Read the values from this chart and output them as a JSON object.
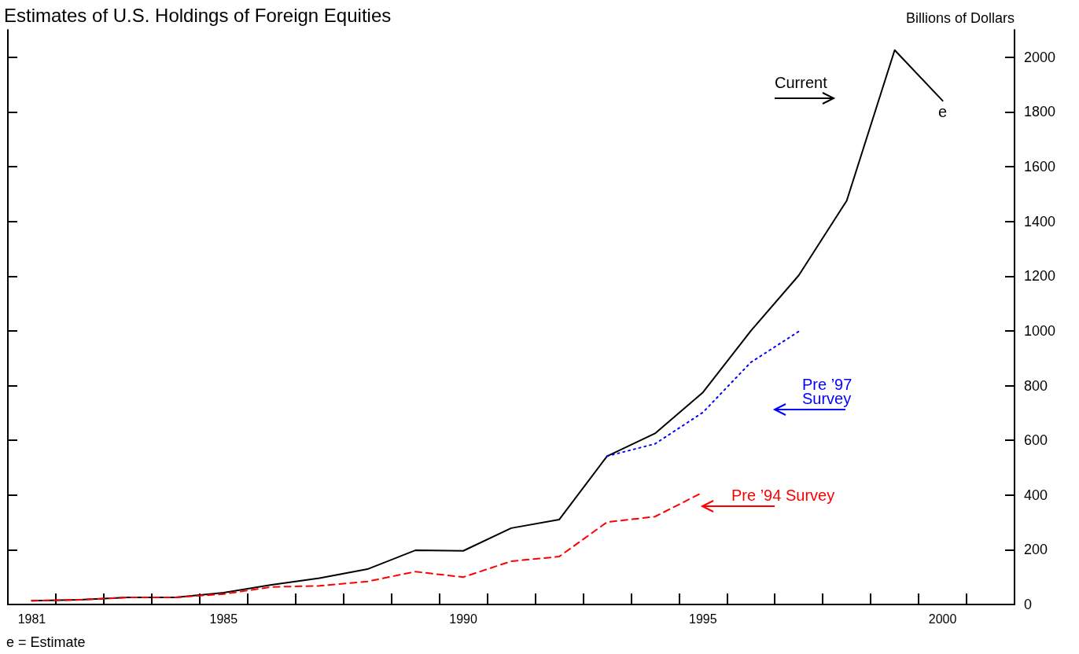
{
  "chart_data": {
    "type": "line",
    "title": "Estimates of U.S. Holdings of Foreign Equities",
    "ylabel": "Billions of Dollars",
    "x": [
      1981,
      1982,
      1983,
      1984,
      1985,
      1986,
      1987,
      1988,
      1989,
      1990,
      1991,
      1992,
      1993,
      1994,
      1995,
      1996,
      1997,
      1998,
      1999,
      2000
    ],
    "series": [
      {
        "name": "Current",
        "color": "#000000",
        "line_style": "solid",
        "values": [
          14,
          17,
          26,
          26,
          43,
          72,
          96,
          129,
          198,
          196,
          279,
          310,
          542,
          625,
          775,
          1000,
          1203,
          1476,
          2026,
          1841
        ]
      },
      {
        "name": "Pre ’97\nSurvey",
        "color": "#0000ff",
        "line_style": "dotted",
        "x": [
          1993,
          1994,
          1995,
          1996,
          1997
        ],
        "values": [
          542,
          587,
          702,
          885,
          998
        ]
      },
      {
        "name": "Pre ’94 Survey",
        "color": "#ff0000",
        "line_style": "dashed",
        "x": [
          1981,
          1982,
          1983,
          1984,
          1985,
          1986,
          1987,
          1988,
          1989,
          1990,
          1991,
          1992,
          1993,
          1994,
          1995
        ],
        "values": [
          14,
          17,
          26,
          26,
          38,
          64,
          68,
          84,
          120,
          100,
          158,
          175,
          301,
          321,
          410
        ]
      }
    ],
    "xlim": [
      1980.5,
      2001.5
    ],
    "xticks": [
      1981,
      {
        "value": 1981.5,
        "label": null
      },
      {
        "value": 1982.5,
        "label": null
      },
      {
        "value": 1983.5,
        "label": null
      },
      {
        "value": 1984.5,
        "label": null
      },
      1985,
      {
        "value": 1985.5,
        "label": null
      },
      {
        "value": 1986.5,
        "label": null
      },
      {
        "value": 1987.5,
        "label": null
      },
      {
        "value": 1988.5,
        "label": null
      },
      {
        "value": 1989.5,
        "label": null
      },
      1990,
      {
        "value": 1990.5,
        "label": null
      },
      {
        "value": 1991.5,
        "label": null
      },
      {
        "value": 1992.5,
        "label": null
      },
      {
        "value": 1993.5,
        "label": null
      },
      {
        "value": 1994.5,
        "label": null
      },
      1995,
      {
        "value": 1995.5,
        "label": null
      },
      {
        "value": 1996.5,
        "label": null
      },
      {
        "value": 1997.5,
        "label": null
      },
      {
        "value": 1998.5,
        "label": null
      },
      {
        "value": 1999.5,
        "label": null
      },
      2000,
      {
        "value": 2000.5,
        "label": null
      }
    ],
    "ylim": [
      0,
      2100
    ],
    "yticks": [
      0,
      200,
      400,
      600,
      800,
      1000,
      1200,
      1400,
      1600,
      1800,
      2000
    ],
    "grid": false,
    "marker": "none",
    "annotations": [
      {
        "text": "e",
        "x": 2000,
        "y": 1841
      },
      "e = Estimate"
    ]
  }
}
